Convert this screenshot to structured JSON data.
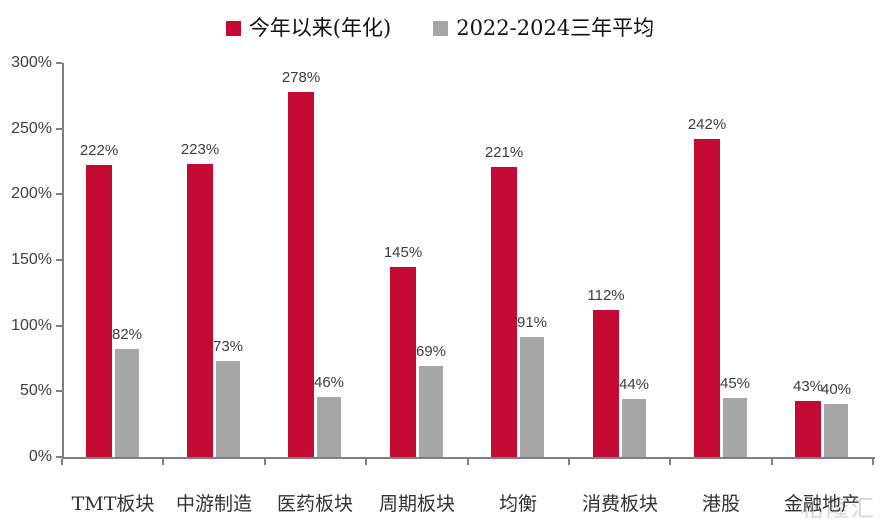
{
  "legend": {
    "items": [
      {
        "label": "今年以来(年化)",
        "color": "#C40A33"
      },
      {
        "label": "2022-2024三年平均",
        "color": "#A6A6A6"
      }
    ]
  },
  "watermark": "格隆汇",
  "colors": {
    "axis": "#7F7F7F",
    "bar_red": "#C40A33",
    "bar_gray": "#A6A6A6",
    "label_text": "#3D3D3D",
    "watermark_gray": "#C9C9C9"
  },
  "chart_data": {
    "type": "bar",
    "title": "",
    "xlabel": "",
    "ylabel": "",
    "categories": [
      "TMT板块",
      "中游制造",
      "医药板块",
      "周期板块",
      "均衡",
      "消费板块",
      "港股",
      "金融地产"
    ],
    "series": [
      {
        "name": "今年以来(年化)",
        "color": "#C40A33",
        "values": [
          222,
          223,
          278,
          145,
          221,
          112,
          242,
          43
        ]
      },
      {
        "name": "2022-2024三年平均",
        "color": "#A6A6A6",
        "values": [
          82,
          73,
          46,
          69,
          91,
          44,
          45,
          40
        ]
      }
    ],
    "unit": "%",
    "ylim": [
      0,
      300
    ],
    "ytick_step": 50,
    "ytick_labels": [
      "0%",
      "50%",
      "100%",
      "150%",
      "200%",
      "250%",
      "300%"
    ],
    "grid": false,
    "data_labels": true,
    "legend_position": "top"
  }
}
